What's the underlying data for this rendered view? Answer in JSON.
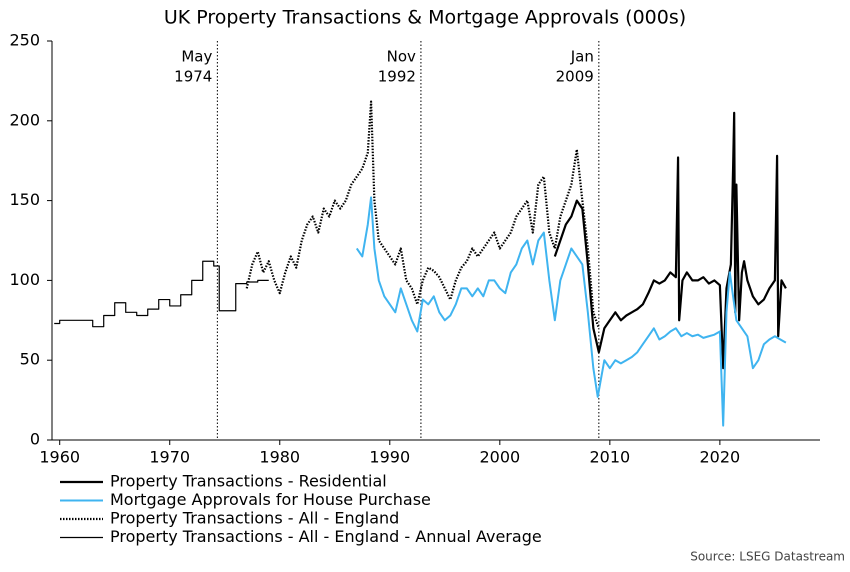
{
  "chart_data": {
    "type": "line",
    "title": "UK Property Transactions & Mortgage Approvals (000s)",
    "source": "Source: LSEG Datastream",
    "xlim": [
      1959.3,
      2029.1
    ],
    "xticks": [
      1960,
      1970,
      1980,
      1990,
      2000,
      2010,
      2020
    ],
    "ylim": [
      0,
      250
    ],
    "yticks": [
      0,
      50,
      100,
      150,
      200,
      250
    ],
    "annotations": [
      {
        "x": 1974.33,
        "lines": [
          "May",
          "1974"
        ]
      },
      {
        "x": 1992.83,
        "lines": [
          "Nov",
          "1992"
        ]
      },
      {
        "x": 2009.0,
        "lines": [
          "Jan",
          "2009"
        ]
      }
    ],
    "series": [
      {
        "name": "Property Transactions - Residential",
        "color": "#000000",
        "style": "solid",
        "width": 2.2,
        "step": false,
        "x": [
          2005,
          2005.5,
          2006,
          2006.5,
          2007,
          2007.5,
          2008,
          2008.5,
          2009,
          2009.5,
          2010,
          2010.5,
          2011,
          2011.5,
          2012,
          2012.5,
          2013,
          2013.5,
          2014,
          2014.5,
          2015,
          2015.5,
          2016,
          2016.2,
          2016.3,
          2016.6,
          2017,
          2017.5,
          2018,
          2018.5,
          2019,
          2019.5,
          2020,
          2020.3,
          2020.6,
          2021,
          2021.2,
          2021.3,
          2021.4,
          2021.5,
          2021.75,
          2022,
          2022.2,
          2022.5,
          2023,
          2023.5,
          2024,
          2024.5,
          2025,
          2025.2,
          2025.3,
          2025.6,
          2026
        ],
        "values": [
          115,
          125,
          135,
          140,
          150,
          145,
          110,
          70,
          55,
          70,
          75,
          80,
          75,
          78,
          80,
          82,
          85,
          92,
          100,
          98,
          100,
          105,
          102,
          177,
          75,
          100,
          105,
          100,
          100,
          102,
          98,
          100,
          97,
          45,
          95,
          110,
          170,
          205,
          80,
          160,
          75,
          105,
          112,
          100,
          90,
          85,
          88,
          95,
          100,
          178,
          65,
          100,
          95
        ]
      },
      {
        "name": "Mortgage Approvals for House Purchase",
        "color": "#3fb4f0",
        "style": "solid",
        "width": 2,
        "step": false,
        "x": [
          1987,
          1987.5,
          1988,
          1988.3,
          1988.6,
          1989,
          1989.5,
          1990,
          1990.5,
          1991,
          1991.5,
          1992,
          1992.5,
          1993,
          1993.5,
          1994,
          1994.5,
          1995,
          1995.5,
          1996,
          1996.5,
          1997,
          1997.5,
          1998,
          1998.5,
          1999,
          1999.5,
          2000,
          2000.5,
          2001,
          2001.5,
          2002,
          2002.5,
          2003,
          2003.5,
          2004,
          2004.5,
          2005,
          2005.5,
          2006,
          2006.5,
          2007,
          2007.5,
          2008,
          2008.5,
          2008.9,
          2009.5,
          2010,
          2010.5,
          2011,
          2011.5,
          2012,
          2012.5,
          2013,
          2013.5,
          2014,
          2014.5,
          2015,
          2015.5,
          2016,
          2016.5,
          2017,
          2017.5,
          2018,
          2018.5,
          2019,
          2019.5,
          2020,
          2020.3,
          2020.6,
          2020.9,
          2021,
          2021.5,
          2022,
          2022.5,
          2023,
          2023.5,
          2024,
          2024.5,
          2025,
          2025.5,
          2026
        ],
        "values": [
          120,
          115,
          135,
          152,
          120,
          100,
          90,
          85,
          80,
          95,
          85,
          75,
          68,
          88,
          85,
          90,
          80,
          75,
          78,
          85,
          95,
          95,
          90,
          95,
          90,
          100,
          100,
          95,
          92,
          105,
          110,
          120,
          125,
          110,
          125,
          130,
          100,
          75,
          100,
          110,
          120,
          115,
          110,
          80,
          45,
          27,
          50,
          45,
          50,
          48,
          50,
          52,
          55,
          60,
          65,
          70,
          63,
          65,
          68,
          70,
          65,
          67,
          65,
          66,
          64,
          65,
          66,
          68,
          9,
          80,
          105,
          100,
          75,
          70,
          65,
          45,
          50,
          60,
          63,
          65,
          63,
          61
        ]
      },
      {
        "name": "Property Transactions - All - England",
        "color": "#000000",
        "style": "dotted",
        "width": 2.2,
        "step": false,
        "x": [
          1977,
          1977.5,
          1978,
          1978.5,
          1979,
          1979.5,
          1980,
          1980.5,
          1981,
          1981.5,
          1982,
          1982.5,
          1983,
          1983.5,
          1984,
          1984.5,
          1985,
          1985.5,
          1986,
          1986.5,
          1987,
          1987.5,
          1988,
          1988.3,
          1988.6,
          1989,
          1989.5,
          1990,
          1990.5,
          1991,
          1991.5,
          1992,
          1992.5,
          1993,
          1993.5,
          1994,
          1994.5,
          1995,
          1995.5,
          1996,
          1996.5,
          1997,
          1997.5,
          1998,
          1998.5,
          1999,
          1999.5,
          2000,
          2000.5,
          2001,
          2001.5,
          2002,
          2002.5,
          2003,
          2003.5,
          2004,
          2004.5,
          2005,
          2005.5,
          2006,
          2006.5,
          2007,
          2007.5,
          2008,
          2008.5,
          2009
        ],
        "values": [
          95,
          110,
          118,
          105,
          112,
          100,
          92,
          105,
          115,
          108,
          125,
          135,
          140,
          130,
          145,
          140,
          150,
          145,
          150,
          160,
          165,
          170,
          180,
          212,
          150,
          125,
          120,
          115,
          110,
          120,
          100,
          95,
          85,
          100,
          108,
          106,
          102,
          95,
          88,
          100,
          108,
          112,
          120,
          115,
          120,
          125,
          130,
          120,
          125,
          130,
          140,
          145,
          150,
          130,
          160,
          165,
          130,
          120,
          140,
          150,
          160,
          182,
          150,
          120,
          80,
          70
        ]
      },
      {
        "name": "Property Transactions - All - England - Annual Average",
        "color": "#000000",
        "style": "solid",
        "width": 1.2,
        "step": true,
        "x": [
          1959.5,
          1960,
          1961,
          1962,
          1963,
          1964,
          1965,
          1966,
          1967,
          1968,
          1969,
          1970,
          1971,
          1972,
          1973,
          1974,
          1974.5,
          1975,
          1976,
          1977,
          1978
        ],
        "values": [
          73,
          75,
          75,
          75,
          71,
          78,
          86,
          80,
          78,
          82,
          88,
          84,
          91,
          100,
          112,
          109,
          81,
          81,
          98,
          99,
          100
        ]
      }
    ]
  }
}
